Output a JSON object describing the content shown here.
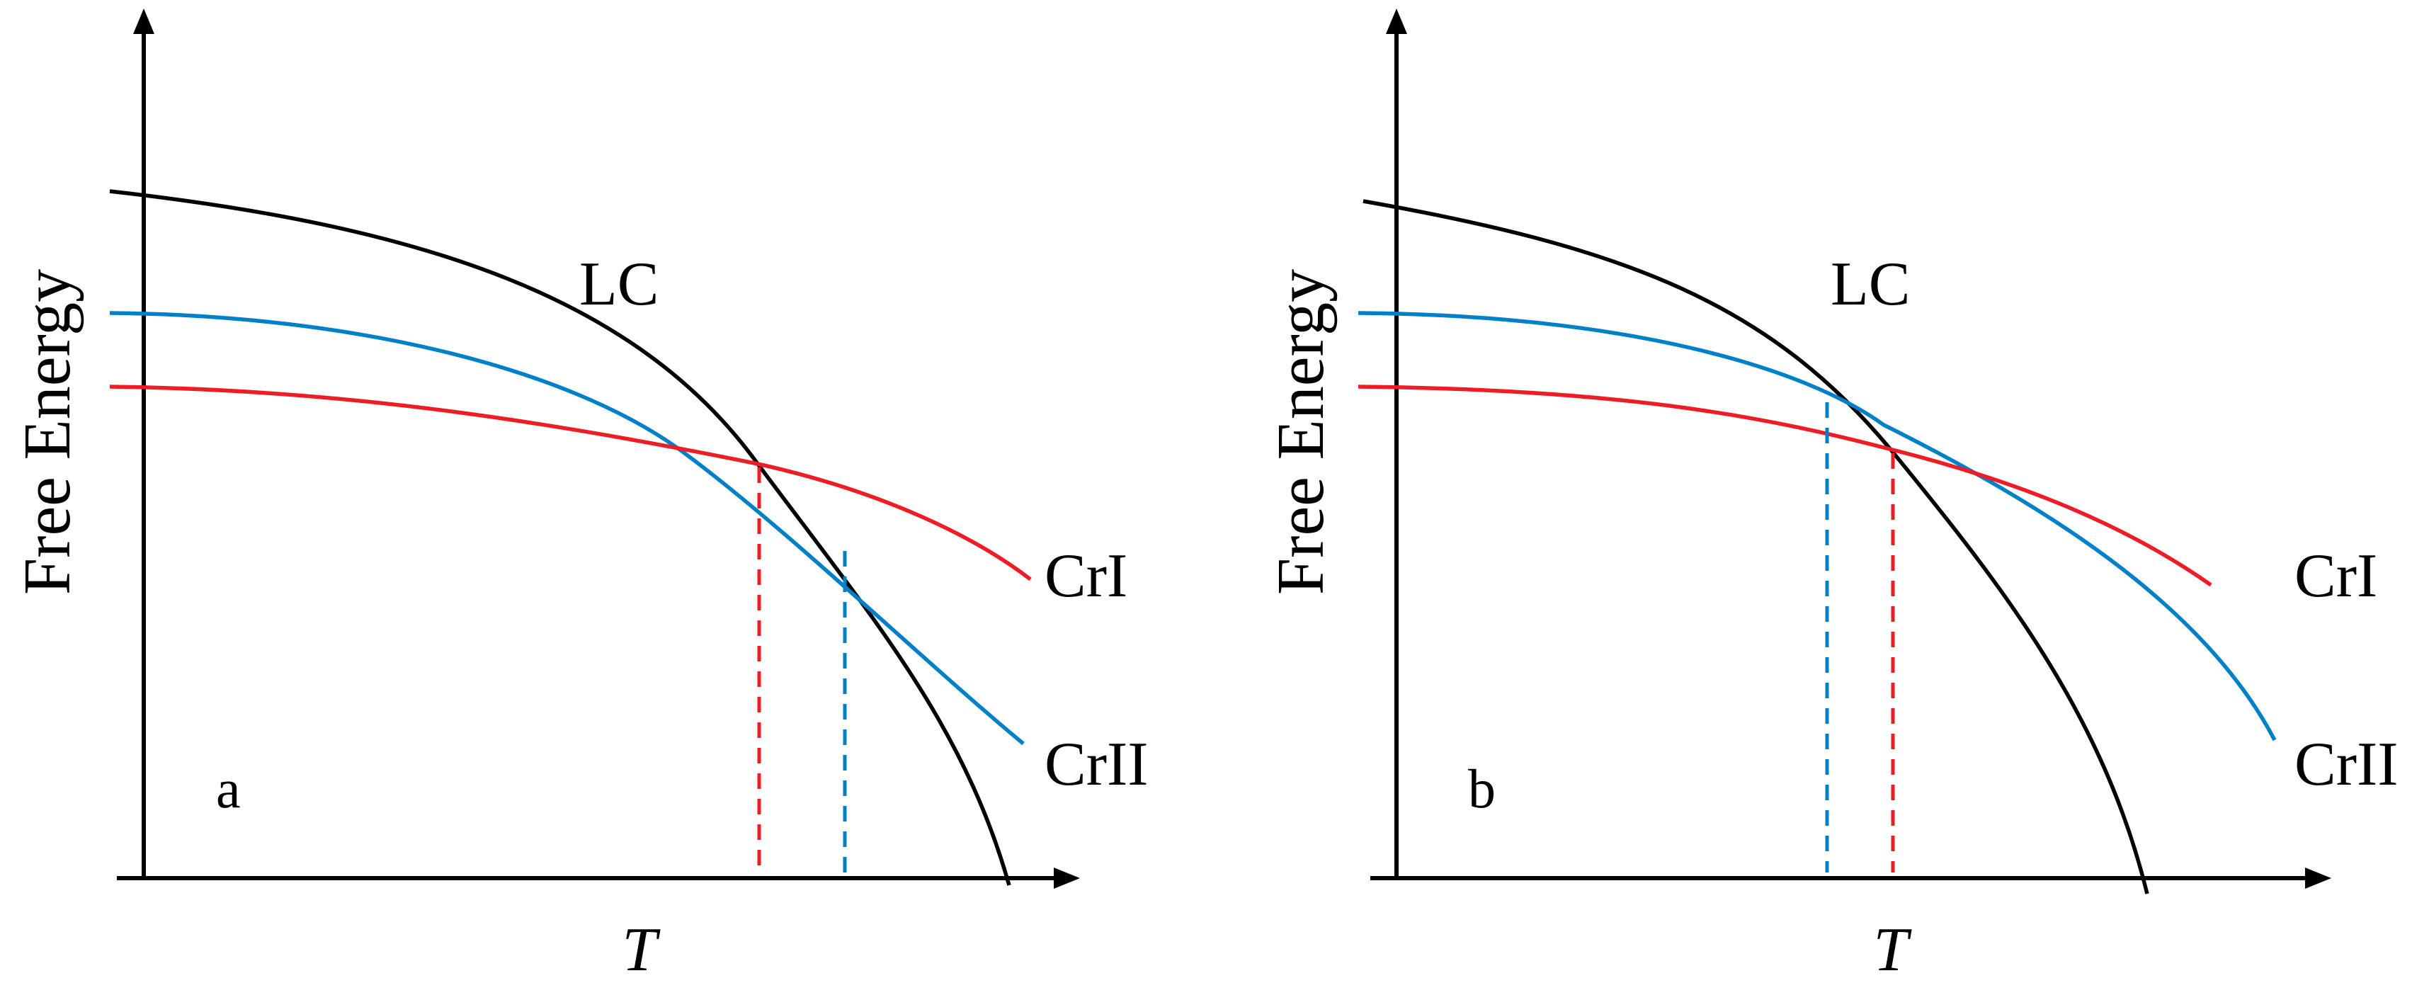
{
  "colors": {
    "axis": "#000000",
    "lc_curve": "#000000",
    "cri_curve": "#ee1c24",
    "crii_curve": "#0080c8"
  },
  "panel_a": {
    "letter": "a",
    "y_axis_label": "Free Energy",
    "x_axis_label": "T",
    "lc_label": "LC",
    "cri_label": "CrI",
    "crii_label": "CrII"
  },
  "panel_b": {
    "letter": "b",
    "y_axis_label": "Free Energy",
    "x_axis_label": "T",
    "lc_label": "LC",
    "cri_label": "CrI",
    "crii_label": "CrII"
  }
}
